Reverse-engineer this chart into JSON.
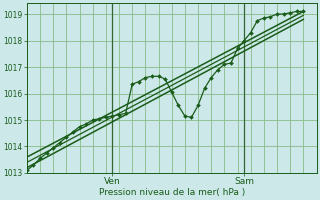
{
  "xlabel": "Pression niveau de la mer( hPa )",
  "bg_color": "#cce8e8",
  "grid_color": "#88bb88",
  "line_color": "#1a5c1a",
  "sep_color": "#336633",
  "ylim": [
    1013.0,
    1019.4
  ],
  "xlim": [
    0,
    44
  ],
  "ven_x": 13,
  "sam_x": 33,
  "yticks": [
    1013,
    1014,
    1015,
    1016,
    1017,
    1018,
    1019
  ],
  "xtick_pos": [
    13,
    33
  ],
  "xtick_labels": [
    "Ven",
    "Sam"
  ],
  "main_line": [
    [
      0,
      1013.1
    ],
    [
      1,
      1013.3
    ],
    [
      2,
      1013.55
    ],
    [
      3,
      1013.75
    ],
    [
      4,
      1013.95
    ],
    [
      5,
      1014.15
    ],
    [
      6,
      1014.35
    ],
    [
      7,
      1014.55
    ],
    [
      8,
      1014.75
    ],
    [
      9,
      1014.85
    ],
    [
      10,
      1015.0
    ],
    [
      11,
      1015.05
    ],
    [
      12,
      1015.1
    ],
    [
      13,
      1015.15
    ],
    [
      14,
      1015.2
    ],
    [
      15,
      1015.25
    ],
    [
      16,
      1016.35
    ],
    [
      17,
      1016.45
    ],
    [
      18,
      1016.6
    ],
    [
      19,
      1016.65
    ],
    [
      20,
      1016.65
    ],
    [
      21,
      1016.55
    ],
    [
      22,
      1016.05
    ],
    [
      23,
      1015.55
    ],
    [
      24,
      1015.15
    ],
    [
      25,
      1015.1
    ],
    [
      26,
      1015.55
    ],
    [
      27,
      1016.2
    ],
    [
      28,
      1016.6
    ],
    [
      29,
      1016.9
    ],
    [
      30,
      1017.1
    ],
    [
      31,
      1017.15
    ],
    [
      32,
      1017.7
    ],
    [
      33,
      1018.0
    ],
    [
      34,
      1018.3
    ],
    [
      35,
      1018.75
    ],
    [
      36,
      1018.85
    ],
    [
      37,
      1018.9
    ],
    [
      38,
      1019.0
    ],
    [
      39,
      1019.0
    ],
    [
      40,
      1019.05
    ],
    [
      41,
      1019.1
    ],
    [
      42,
      1019.1
    ]
  ],
  "line_upper": [
    [
      0,
      1013.6
    ],
    [
      42,
      1019.1
    ]
  ],
  "line_lower": [
    [
      0,
      1013.2
    ],
    [
      42,
      1018.8
    ]
  ],
  "line_mid": [
    [
      0,
      1013.4
    ],
    [
      42,
      1018.95
    ]
  ]
}
